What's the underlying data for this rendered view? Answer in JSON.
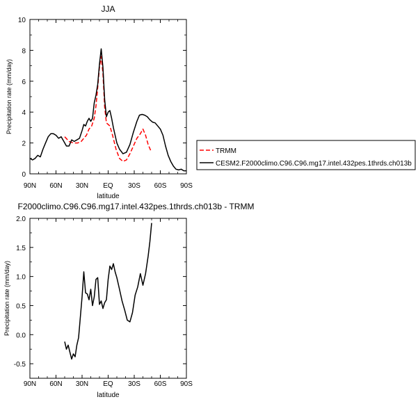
{
  "chart_data": [
    {
      "type": "line",
      "title": "JJA",
      "xlabel": "latitude",
      "ylabel": "Precipitation rate (mm/day)",
      "xlim": [
        90,
        -90
      ],
      "ylim": [
        0,
        10
      ],
      "xticks": [
        90,
        60,
        30,
        0,
        -30,
        -60,
        -90
      ],
      "xtick_labels": [
        "90N",
        "60N",
        "30N",
        "EQ",
        "30S",
        "60S",
        "90S"
      ],
      "yticks": [
        0,
        2,
        4,
        6,
        8,
        10
      ],
      "ytick_labels": [
        "0",
        "2",
        "4",
        "6",
        "8",
        "10"
      ],
      "grid": false,
      "legend": "right",
      "series": [
        {
          "name": "TRMM",
          "color": "#ff0000",
          "dash": "dashed",
          "points": [
            [
              50,
              2.4
            ],
            [
              45,
              2.1
            ],
            [
              40,
              2.0
            ],
            [
              35,
              2.0
            ],
            [
              31,
              2.1
            ],
            [
              28,
              2.3
            ],
            [
              25,
              2.5
            ],
            [
              22,
              2.9
            ],
            [
              19,
              3.1
            ],
            [
              16,
              3.6
            ],
            [
              14,
              4.4
            ],
            [
              12,
              5.6
            ],
            [
              10,
              6.9
            ],
            [
              8,
              7.6
            ],
            [
              6,
              6.5
            ],
            [
              4,
              4.3
            ],
            [
              2,
              3.3
            ],
            [
              -2,
              3.1
            ],
            [
              -5,
              2.5
            ],
            [
              -9,
              1.6
            ],
            [
              -13,
              1.0
            ],
            [
              -17,
              0.8
            ],
            [
              -21,
              0.9
            ],
            [
              -25,
              1.3
            ],
            [
              -29,
              1.8
            ],
            [
              -33,
              2.3
            ],
            [
              -37,
              2.6
            ],
            [
              -40,
              2.9
            ],
            [
              -43,
              2.5
            ],
            [
              -46,
              1.9
            ],
            [
              -49,
              1.5
            ]
          ]
        },
        {
          "name": "CESM2.F2000climo.C96.C96.mg17.intel.432pes.1thrds.ch013b",
          "color": "#000000",
          "dash": "solid",
          "points": [
            [
              90,
              1.0
            ],
            [
              87,
              0.9
            ],
            [
              84,
              1.0
            ],
            [
              81,
              1.2
            ],
            [
              78,
              1.1
            ],
            [
              75,
              1.6
            ],
            [
              72,
              2.0
            ],
            [
              69,
              2.4
            ],
            [
              66,
              2.6
            ],
            [
              63,
              2.6
            ],
            [
              60,
              2.5
            ],
            [
              57,
              2.3
            ],
            [
              54,
              2.4
            ],
            [
              51,
              2.1
            ],
            [
              48,
              1.8
            ],
            [
              45,
              1.8
            ],
            [
              42,
              2.2
            ],
            [
              39,
              2.1
            ],
            [
              36,
              2.2
            ],
            [
              33,
              2.3
            ],
            [
              30,
              2.8
            ],
            [
              28,
              3.2
            ],
            [
              26,
              3.1
            ],
            [
              24,
              3.4
            ],
            [
              22,
              3.6
            ],
            [
              20,
              3.4
            ],
            [
              18,
              3.6
            ],
            [
              16,
              4.6
            ],
            [
              14,
              5.1
            ],
            [
              12,
              5.8
            ],
            [
              10,
              7.1
            ],
            [
              8,
              8.1
            ],
            [
              6,
              6.9
            ],
            [
              4,
              4.8
            ],
            [
              2,
              3.7
            ],
            [
              0,
              4.0
            ],
            [
              -2,
              4.1
            ],
            [
              -4,
              3.6
            ],
            [
              -6,
              3.0
            ],
            [
              -8,
              2.5
            ],
            [
              -10,
              2.0
            ],
            [
              -13,
              1.6
            ],
            [
              -17,
              1.3
            ],
            [
              -21,
              1.4
            ],
            [
              -25,
              1.9
            ],
            [
              -29,
              2.7
            ],
            [
              -33,
              3.4
            ],
            [
              -36,
              3.8
            ],
            [
              -39,
              3.85
            ],
            [
              -42,
              3.8
            ],
            [
              -45,
              3.7
            ],
            [
              -48,
              3.5
            ],
            [
              -51,
              3.35
            ],
            [
              -54,
              3.3
            ],
            [
              -57,
              3.1
            ],
            [
              -60,
              2.9
            ],
            [
              -63,
              2.5
            ],
            [
              -66,
              1.8
            ],
            [
              -69,
              1.2
            ],
            [
              -72,
              0.8
            ],
            [
              -75,
              0.5
            ],
            [
              -78,
              0.3
            ],
            [
              -81,
              0.25
            ],
            [
              -84,
              0.3
            ],
            [
              -87,
              0.2
            ],
            [
              -90,
              0.2
            ]
          ]
        }
      ]
    },
    {
      "type": "line",
      "title": "F2000climo.C96.C96.mg17.intel.432pes.1thrds.ch013b - TRMM",
      "xlabel": "latitude",
      "ylabel": "Precipitation rate (mm/day)",
      "xlim": [
        90,
        -90
      ],
      "ylim": [
        -0.75,
        2.0
      ],
      "xticks": [
        90,
        60,
        30,
        0,
        -30,
        -60,
        -90
      ],
      "xtick_labels": [
        "90N",
        "60N",
        "30N",
        "EQ",
        "30S",
        "60S",
        "90S"
      ],
      "yticks": [
        -0.5,
        0.0,
        0.5,
        1.0,
        1.5,
        2.0
      ],
      "ytick_labels": [
        "-0.5",
        "0.0",
        "0.5",
        "1.0",
        "1.5",
        "2.0"
      ],
      "grid": false,
      "series": [
        {
          "name": "",
          "color": "#000000",
          "dash": "solid",
          "points": [
            [
              50,
              -0.12
            ],
            [
              48,
              -0.25
            ],
            [
              46,
              -0.18
            ],
            [
              44,
              -0.3
            ],
            [
              42,
              -0.42
            ],
            [
              40,
              -0.33
            ],
            [
              38,
              -0.38
            ],
            [
              36,
              -0.18
            ],
            [
              34,
              -0.05
            ],
            [
              32,
              0.3
            ],
            [
              30,
              0.65
            ],
            [
              28,
              1.08
            ],
            [
              26,
              0.72
            ],
            [
              24,
              0.7
            ],
            [
              22,
              0.6
            ],
            [
              20,
              0.78
            ],
            [
              18,
              0.5
            ],
            [
              16,
              0.65
            ],
            [
              14,
              0.95
            ],
            [
              12,
              0.98
            ],
            [
              10,
              0.52
            ],
            [
              8,
              0.58
            ],
            [
              6,
              0.45
            ],
            [
              4,
              0.55
            ],
            [
              2,
              0.6
            ],
            [
              0,
              0.95
            ],
            [
              -2,
              1.18
            ],
            [
              -4,
              1.12
            ],
            [
              -6,
              1.22
            ],
            [
              -8,
              1.08
            ],
            [
              -10,
              0.98
            ],
            [
              -13,
              0.78
            ],
            [
              -16,
              0.58
            ],
            [
              -19,
              0.42
            ],
            [
              -22,
              0.25
            ],
            [
              -25,
              0.22
            ],
            [
              -28,
              0.38
            ],
            [
              -31,
              0.68
            ],
            [
              -34,
              0.82
            ],
            [
              -37,
              1.05
            ],
            [
              -40,
              0.85
            ],
            [
              -43,
              1.05
            ],
            [
              -46,
              1.35
            ],
            [
              -48,
              1.6
            ],
            [
              -50,
              1.92
            ]
          ]
        }
      ]
    }
  ]
}
